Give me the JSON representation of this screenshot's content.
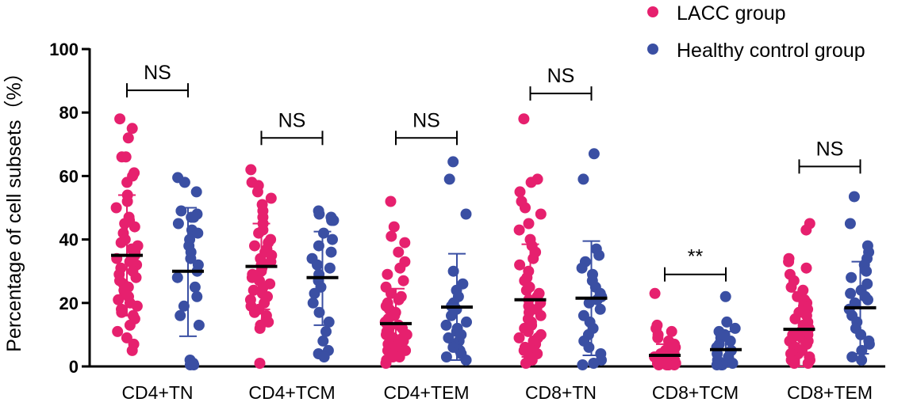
{
  "chart_data": {
    "type": "scatter",
    "title": "",
    "xlabel": "",
    "ylabel": "Percentage of cell subsets（%）",
    "ylim": [
      0,
      100
    ],
    "yticks": [
      0,
      20,
      40,
      60,
      80,
      100
    ],
    "grid": false,
    "legend_position": "top-right",
    "categories": [
      "CD4+TN",
      "CD4+TCM",
      "CD4+TEM",
      "CD8+TN",
      "CD8+TCM",
      "CD8+TEM"
    ],
    "significance": [
      "NS",
      "NS",
      "NS",
      "NS",
      "**",
      "NS"
    ],
    "bracket_heights": [
      87,
      72,
      72,
      86,
      29,
      63
    ],
    "colors": {
      "LACC group": "#e6206e",
      "Healthy control group": "#3a4fa3"
    },
    "series": [
      {
        "name": "LACC group",
        "mean": [
          35,
          31.5,
          13.5,
          21,
          3.5,
          11.7
        ],
        "sd_low": [
          16,
          18,
          3,
          3,
          0,
          0
        ],
        "sd_high": [
          54,
          45,
          24.5,
          38.5,
          7,
          23.5
        ],
        "points": [
          [
            78,
            75,
            72,
            66,
            66,
            61,
            60,
            58,
            54,
            52,
            50,
            47,
            46,
            45,
            44,
            42,
            40,
            39,
            38,
            37,
            36,
            35,
            34,
            33,
            32,
            31,
            30,
            29,
            28,
            27,
            26,
            25,
            24,
            23,
            22,
            21,
            20,
            19,
            18,
            17,
            16,
            15,
            13,
            11,
            9,
            7,
            5
          ],
          [
            62,
            58,
            57,
            55,
            53,
            51,
            49,
            47,
            45,
            43,
            42,
            40,
            39,
            38,
            37,
            36,
            35,
            34,
            33,
            32,
            31,
            30,
            29,
            28,
            27,
            26,
            25,
            24,
            23,
            22,
            21,
            20,
            19,
            18,
            17,
            16,
            15,
            14,
            13,
            12,
            1
          ],
          [
            52,
            44,
            41,
            39,
            36,
            33,
            31,
            29,
            27,
            25,
            23,
            22,
            21,
            20,
            19,
            18,
            17,
            16,
            15,
            14,
            13,
            13,
            12,
            12,
            11,
            11,
            10,
            10,
            9,
            9,
            8,
            8,
            7,
            7,
            6,
            6,
            5,
            5,
            4,
            4,
            3,
            3,
            2,
            1
          ],
          [
            78,
            59,
            58,
            55,
            52,
            50,
            48,
            45,
            43,
            40,
            38,
            36,
            34,
            32,
            30,
            28,
            27,
            25,
            24,
            23,
            22,
            21,
            20,
            19,
            18,
            17,
            16,
            15,
            14,
            13,
            12,
            11,
            10,
            9,
            9,
            8,
            7,
            6,
            5,
            5,
            4,
            3,
            2,
            1
          ],
          [
            23,
            13,
            12,
            11,
            10,
            9,
            8,
            7,
            6,
            6,
            5,
            5,
            4,
            4,
            4,
            3,
            3,
            3,
            3,
            2,
            2,
            2,
            2,
            2,
            1,
            1,
            1,
            1,
            1,
            1,
            0.5,
            0.5,
            0.5,
            0.5,
            0.5,
            0.5
          ],
          [
            45,
            43,
            34,
            33,
            31,
            29,
            27,
            25,
            24,
            22,
            21,
            20,
            19,
            18,
            17,
            16,
            15,
            14,
            13,
            12,
            11,
            10,
            10,
            9,
            9,
            8,
            8,
            7,
            7,
            6,
            6,
            5,
            5,
            4,
            4,
            3,
            3,
            2,
            2,
            1,
            1
          ]
        ]
      },
      {
        "name": "Healthy control group",
        "mean": [
          30,
          28,
          18.7,
          21.5,
          5.3,
          18.5
        ],
        "sd_low": [
          9.5,
          13,
          2,
          3.5,
          0,
          4
        ],
        "sd_high": [
          50,
          42.5,
          35.5,
          39.5,
          11,
          33
        ],
        "points": [
          [
            59.5,
            58,
            55,
            49,
            48,
            47,
            47,
            45,
            43,
            42,
            40,
            38,
            36,
            34,
            32,
            30,
            28,
            25,
            22,
            19,
            16,
            13,
            2,
            1,
            0.5,
            0.5
          ],
          [
            49,
            48,
            47,
            46,
            46,
            42,
            40,
            38,
            36,
            34,
            32,
            31,
            29,
            27,
            25,
            23,
            20,
            17,
            14,
            11,
            8,
            5,
            4,
            3
          ],
          [
            64.5,
            59,
            48,
            30,
            26,
            24,
            22,
            20,
            19,
            18,
            16,
            14,
            13,
            12,
            11,
            10,
            9,
            8,
            7,
            6,
            5,
            4,
            3,
            2
          ],
          [
            67,
            59,
            37,
            35,
            33,
            31,
            29,
            27,
            25,
            23,
            22,
            21,
            20,
            18,
            16,
            14,
            12,
            10,
            8,
            6,
            4,
            2,
            1,
            0.5
          ],
          [
            22,
            14,
            12,
            11,
            10,
            9,
            8,
            7,
            6,
            5,
            4,
            3,
            2,
            2,
            1,
            1,
            1,
            0.5,
            0.5,
            0.5
          ],
          [
            53.5,
            45,
            38,
            36,
            34,
            32,
            30,
            28,
            26,
            24,
            23,
            22,
            21,
            20,
            18,
            16,
            14,
            12,
            10,
            8,
            7,
            5,
            3,
            2
          ]
        ]
      }
    ]
  }
}
